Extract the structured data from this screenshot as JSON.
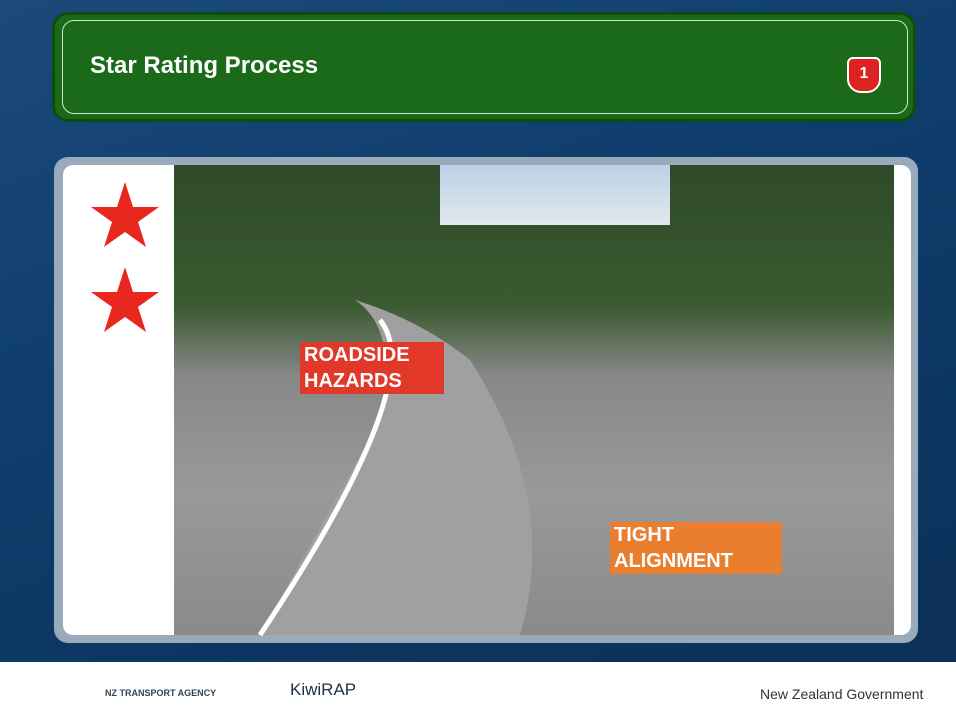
{
  "header": {
    "title": "Star Rating Process",
    "badge": "1"
  },
  "labels": [
    "ROADSIDE HAZARDS",
    "TIGHT ALIGNMENT"
  ],
  "footer": {
    "agency": "NZ TRANSPORT AGENCY",
    "brand": "KiwiRAP",
    "government": "New Zealand Government"
  }
}
